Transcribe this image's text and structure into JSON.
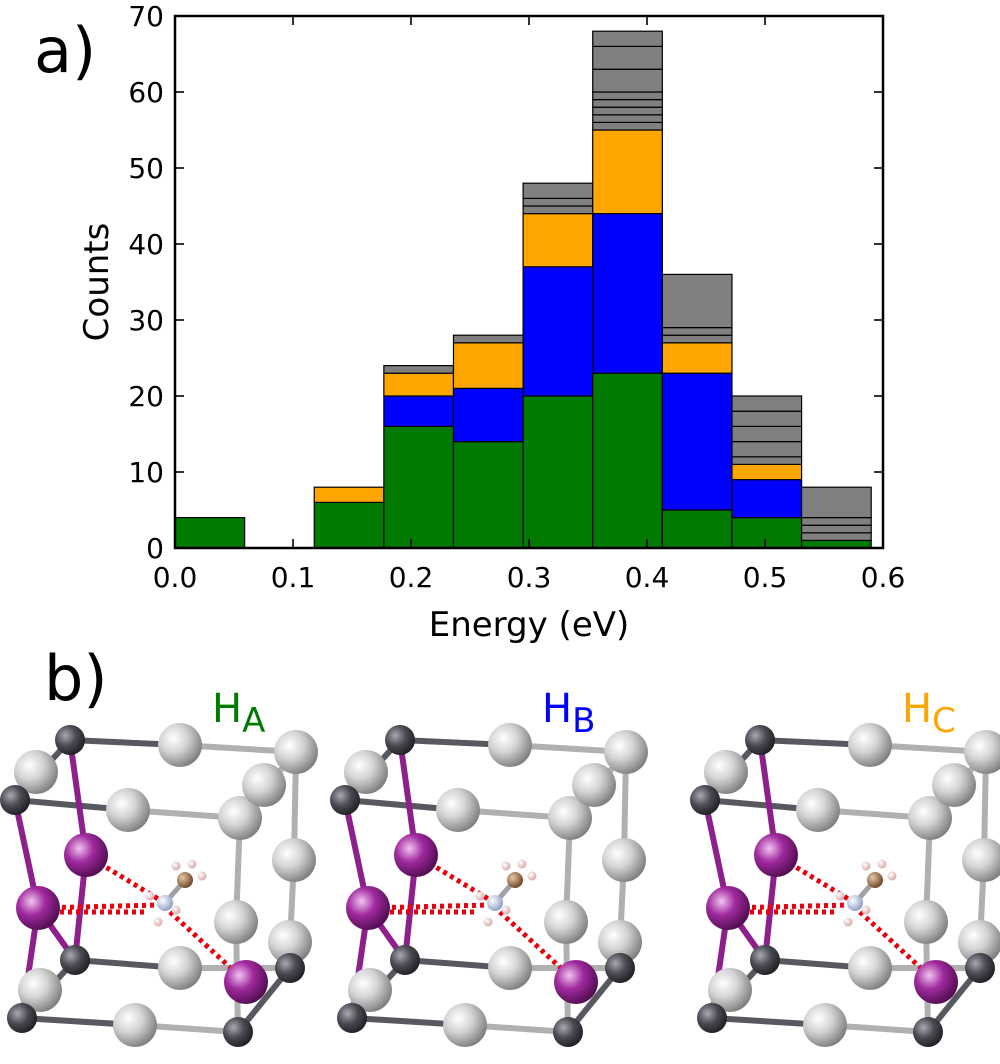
{
  "panel_labels": {
    "a": "a)",
    "b": "b)"
  },
  "chart_data": {
    "type": "bar",
    "stacked": true,
    "xlabel": "Energy (eV)",
    "ylabel": "Counts",
    "xlim": [
      0.0,
      0.6
    ],
    "ylim": [
      0,
      70
    ],
    "xticks": [
      "0.0",
      "0.1",
      "0.2",
      "0.3",
      "0.4",
      "0.5",
      "0.6"
    ],
    "yticks": [
      "0",
      "10",
      "20",
      "30",
      "40",
      "50",
      "60",
      "70"
    ],
    "grid": false,
    "bin_edges": [
      0.0,
      0.059,
      0.118,
      0.177,
      0.236,
      0.295,
      0.354,
      0.413,
      0.472,
      0.531,
      0.59
    ],
    "colors": {
      "HA": "#007a00",
      "HB": "#0000ff",
      "HC": "#ffa500",
      "other": "#808080"
    },
    "series": [
      {
        "key": "HA",
        "values": [
          4,
          0,
          6,
          16,
          14,
          20,
          23,
          5,
          4,
          1
        ]
      },
      {
        "key": "HB",
        "values": [
          0,
          0,
          0,
          4,
          7,
          17,
          21,
          18,
          5,
          0
        ]
      },
      {
        "key": "HC",
        "values": [
          0,
          0,
          2,
          3,
          6,
          7,
          11,
          4,
          2,
          0
        ]
      },
      {
        "key": "other",
        "values": [
          0,
          0,
          0,
          1,
          1,
          4,
          13,
          9,
          9,
          7
        ]
      }
    ],
    "other_segments": [
      [],
      [],
      [],
      [
        1
      ],
      [
        1
      ],
      [
        1,
        1,
        2
      ],
      [
        1,
        1,
        1,
        1,
        1,
        3,
        3,
        2
      ],
      [
        1,
        1,
        7
      ],
      [
        1,
        2,
        2,
        2,
        2
      ],
      [
        1,
        1,
        1,
        4
      ]
    ]
  },
  "structures": [
    {
      "label_main": "H",
      "label_sub": "A",
      "color": "#007a00"
    },
    {
      "label_main": "H",
      "label_sub": "B",
      "color": "#0000ff"
    },
    {
      "label_main": "H",
      "label_sub": "C",
      "color": "#ffa500"
    }
  ]
}
